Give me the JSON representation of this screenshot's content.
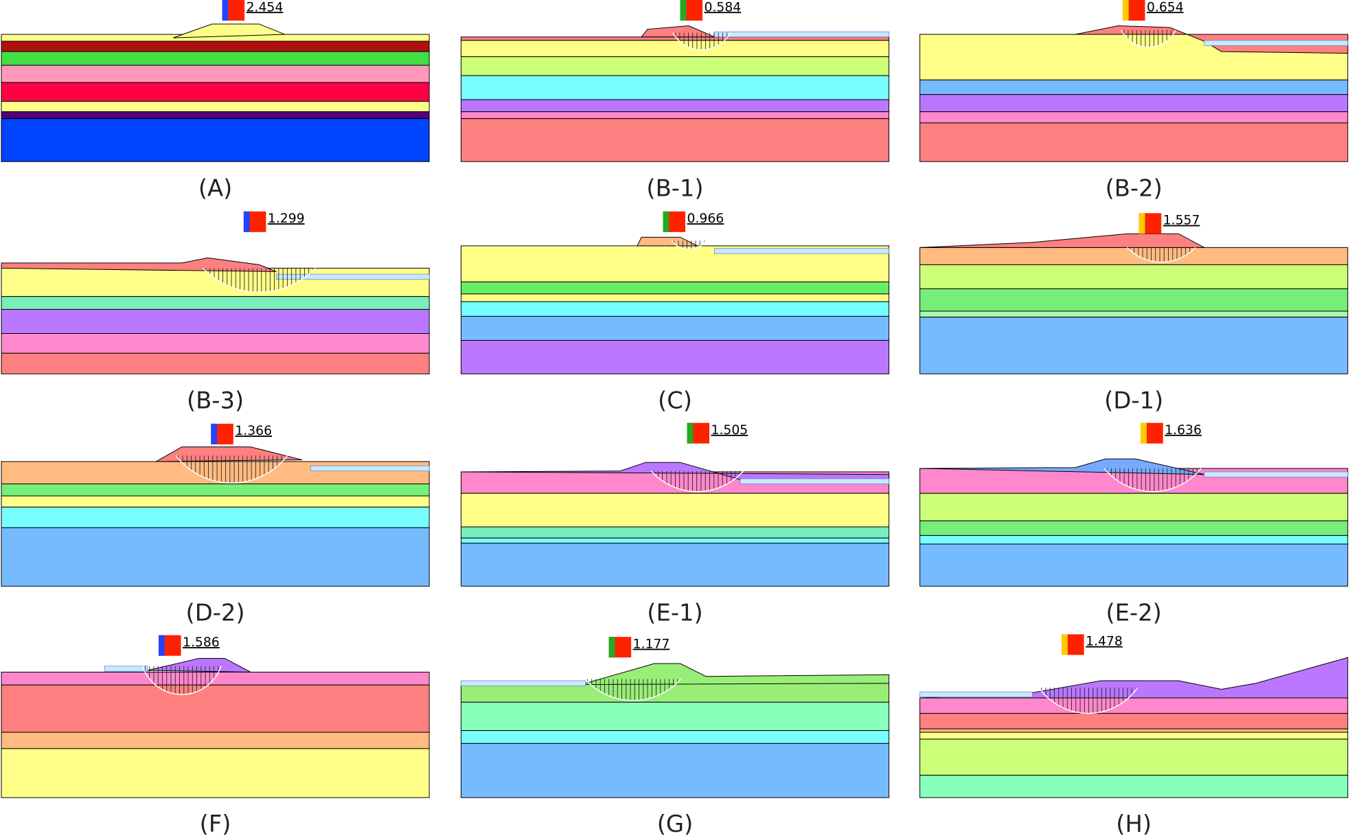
{
  "panels": [
    {
      "label": "(A)",
      "fos": "2.454"
    },
    {
      "label": "(B-1)",
      "fos": "0.584"
    },
    {
      "label": "(B-2)",
      "fos": "0.654"
    },
    {
      "label": "(B-3)",
      "fos": "1.299"
    },
    {
      "label": "(C)",
      "fos": "0.966"
    },
    {
      "label": "(D-1)",
      "fos": "1.557"
    },
    {
      "label": "(D-2)",
      "fos": "1.366"
    },
    {
      "label": "(E-1)",
      "fos": "1.505"
    },
    {
      "label": "(E-2)",
      "fos": "1.636"
    },
    {
      "label": "(F)",
      "fos": "1.586"
    },
    {
      "label": "(G)",
      "fos": "1.177"
    },
    {
      "label": "(H)",
      "fos": "1.478"
    }
  ]
}
